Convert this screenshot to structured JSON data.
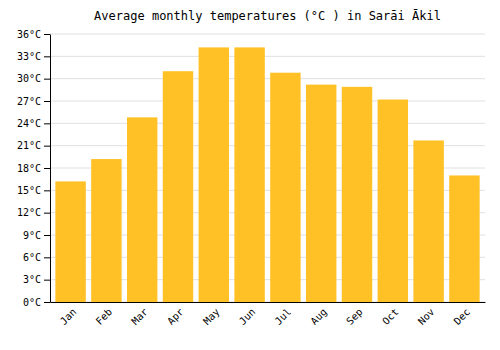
{
  "chart_data": {
    "type": "bar",
    "title": "Average monthly temperatures (°C ) in Sarāi Ākil",
    "categories": [
      "Jan",
      "Feb",
      "Mar",
      "Apr",
      "May",
      "Jun",
      "Jul",
      "Aug",
      "Sep",
      "Oct",
      "Nov",
      "Dec"
    ],
    "values": [
      16.2,
      19.2,
      24.8,
      31.0,
      34.2,
      34.2,
      30.8,
      29.2,
      28.9,
      27.2,
      21.7,
      17.0
    ],
    "color": "#FFC125",
    "ylim": [
      0,
      36
    ],
    "yticks": [
      {
        "value": 0,
        "label": "0°C"
      },
      {
        "value": 3,
        "label": "3°C"
      },
      {
        "value": 6,
        "label": "6°C"
      },
      {
        "value": 9,
        "label": "9°C"
      },
      {
        "value": 12,
        "label": "12°C"
      },
      {
        "value": 15,
        "label": "15°C"
      },
      {
        "value": 18,
        "label": "18°C"
      },
      {
        "value": 21,
        "label": "21°C"
      },
      {
        "value": 24,
        "label": "24°C"
      },
      {
        "value": 27,
        "label": "27°C"
      },
      {
        "value": 30,
        "label": "30°C"
      },
      {
        "value": 33,
        "label": "33°C"
      },
      {
        "value": 36,
        "label": "36°C"
      }
    ],
    "grid": true
  }
}
